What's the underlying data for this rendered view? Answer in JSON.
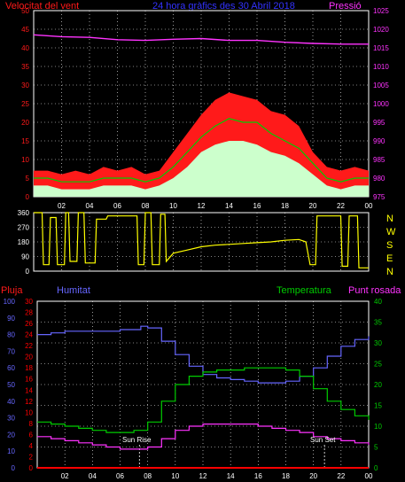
{
  "header": {
    "wind_label": "Velocitat del vent",
    "title": "24 hora gràfics des  30 Abril 2018",
    "pressure_label": "Pressió"
  },
  "lower_header": {
    "rain_label": "Pluja",
    "humidity_label": "Humitat",
    "temperature_label": "Temperatura",
    "dewpoint_label": "Punt rosada"
  },
  "annotations": {
    "sunrise": "Sun Rise",
    "sunset": "Sun Set"
  },
  "colors": {
    "wind": "#ff1a1a",
    "gust_line": "#00cc00",
    "wind_avg": "#ccffcc",
    "pressure": "#ff33ff",
    "direction": "#ffff00",
    "rain": "#ff0000",
    "humidity": "#6666ff",
    "temperature": "#00cc00",
    "dewpoint": "#ff33ff",
    "grid": "#ffffff",
    "frame": "#ffffff"
  },
  "chart_data": [
    {
      "type": "line",
      "name": "wind-pressure",
      "x_ticks": [
        "02",
        "04",
        "06",
        "08",
        "10",
        "12",
        "14",
        "16",
        "18",
        "20",
        "22",
        "00"
      ],
      "x_range_hours": [
        0,
        24
      ],
      "y_left_ticks": [
        "0",
        "5",
        "10",
        "15",
        "20",
        "25",
        "30",
        "35",
        "40",
        "45",
        "50"
      ],
      "y_left_range": [
        0,
        50
      ],
      "y_right_ticks": [
        "975",
        "980",
        "985",
        "990",
        "995",
        "1000",
        "1005",
        "1010",
        "1015",
        "1020",
        "1025"
      ],
      "y_right_range": [
        975,
        1025
      ],
      "grid": true,
      "gust_peak": [
        [
          0,
          7
        ],
        [
          1,
          7
        ],
        [
          2,
          6
        ],
        [
          3,
          7
        ],
        [
          4,
          6
        ],
        [
          5,
          8
        ],
        [
          6,
          7
        ],
        [
          7,
          8
        ],
        [
          8,
          6
        ],
        [
          9,
          7
        ],
        [
          10,
          12
        ],
        [
          11,
          17
        ],
        [
          12,
          22
        ],
        [
          13,
          26
        ],
        [
          14,
          28
        ],
        [
          15,
          27
        ],
        [
          16,
          26
        ],
        [
          17,
          23
        ],
        [
          18,
          22
        ],
        [
          19,
          19
        ],
        [
          20,
          12
        ],
        [
          21,
          8
        ],
        [
          22,
          7
        ],
        [
          23,
          8
        ],
        [
          24,
          7
        ]
      ],
      "gust_avg": [
        [
          0,
          5
        ],
        [
          1,
          5
        ],
        [
          2,
          4
        ],
        [
          3,
          4
        ],
        [
          4,
          4
        ],
        [
          5,
          5
        ],
        [
          6,
          5
        ],
        [
          7,
          5
        ],
        [
          8,
          4
        ],
        [
          9,
          5
        ],
        [
          10,
          8
        ],
        [
          11,
          12
        ],
        [
          12,
          16
        ],
        [
          13,
          19
        ],
        [
          14,
          21
        ],
        [
          15,
          20
        ],
        [
          16,
          20
        ],
        [
          17,
          17
        ],
        [
          18,
          15
        ],
        [
          19,
          13
        ],
        [
          20,
          9
        ],
        [
          21,
          5
        ],
        [
          22,
          4
        ],
        [
          23,
          5
        ],
        [
          24,
          5
        ]
      ],
      "wind_avg": [
        [
          0,
          3
        ],
        [
          1,
          3
        ],
        [
          2,
          2
        ],
        [
          3,
          2
        ],
        [
          4,
          2
        ],
        [
          5,
          3
        ],
        [
          6,
          3
        ],
        [
          7,
          3
        ],
        [
          8,
          2
        ],
        [
          9,
          3
        ],
        [
          10,
          5
        ],
        [
          11,
          8
        ],
        [
          12,
          12
        ],
        [
          13,
          14
        ],
        [
          14,
          15
        ],
        [
          15,
          15
        ],
        [
          16,
          14
        ],
        [
          17,
          12
        ],
        [
          18,
          11
        ],
        [
          19,
          9
        ],
        [
          20,
          6
        ],
        [
          21,
          3
        ],
        [
          22,
          2
        ],
        [
          23,
          3
        ],
        [
          24,
          3
        ]
      ],
      "pressure": [
        [
          0,
          1018.5
        ],
        [
          2,
          1018
        ],
        [
          4,
          1017.8
        ],
        [
          6,
          1017.2
        ],
        [
          8,
          1017
        ],
        [
          10,
          1017.3
        ],
        [
          12,
          1017.5
        ],
        [
          14,
          1017
        ],
        [
          16,
          1017
        ],
        [
          18,
          1016.5
        ],
        [
          20,
          1016.2
        ],
        [
          22,
          1016
        ],
        [
          24,
          1016
        ]
      ]
    },
    {
      "type": "line",
      "name": "wind-direction",
      "y_left_ticks": [
        "0",
        "90",
        "180",
        "270",
        "360"
      ],
      "y_range": [
        0,
        360
      ],
      "compass_labels": [
        "N",
        "W",
        "S",
        "E",
        "N"
      ],
      "grid": true,
      "direction": [
        [
          0,
          360
        ],
        [
          0.6,
          360
        ],
        [
          0.7,
          40
        ],
        [
          1.1,
          40
        ],
        [
          1.2,
          330
        ],
        [
          1.6,
          330
        ],
        [
          1.7,
          40
        ],
        [
          2.2,
          40
        ],
        [
          2.3,
          360
        ],
        [
          2.5,
          360
        ],
        [
          2.6,
          60
        ],
        [
          3.1,
          60
        ],
        [
          3.2,
          360
        ],
        [
          3.6,
          360
        ],
        [
          3.7,
          50
        ],
        [
          4.4,
          50
        ],
        [
          4.5,
          320
        ],
        [
          5.2,
          320
        ],
        [
          5.3,
          340
        ],
        [
          7.4,
          340
        ],
        [
          7.5,
          40
        ],
        [
          7.9,
          40
        ],
        [
          8,
          360
        ],
        [
          8.4,
          360
        ],
        [
          8.5,
          40
        ],
        [
          9,
          40
        ],
        [
          9.1,
          350
        ],
        [
          9.4,
          350
        ],
        [
          9.5,
          60
        ],
        [
          10,
          110
        ],
        [
          11,
          130
        ],
        [
          12,
          150
        ],
        [
          13,
          160
        ],
        [
          14,
          165
        ],
        [
          15,
          170
        ],
        [
          16,
          175
        ],
        [
          17,
          180
        ],
        [
          18,
          190
        ],
        [
          19,
          195
        ],
        [
          19.5,
          180
        ],
        [
          19.8,
          40
        ],
        [
          20.2,
          40
        ],
        [
          20.3,
          340
        ],
        [
          22,
          340
        ],
        [
          22.1,
          30
        ],
        [
          22.5,
          30
        ],
        [
          22.6,
          340
        ],
        [
          23.2,
          340
        ],
        [
          23.3,
          20
        ],
        [
          24,
          20
        ]
      ]
    },
    {
      "type": "line",
      "name": "rain-humidity-temperature",
      "x_ticks": [
        "02",
        "04",
        "06",
        "08",
        "10",
        "12",
        "14",
        "16",
        "18",
        "20",
        "22",
        "00"
      ],
      "y_humidity_ticks": [
        "0",
        "10",
        "20",
        "30",
        "40",
        "50",
        "60",
        "70",
        "80",
        "90",
        "100"
      ],
      "y_humidity_range": [
        0,
        100
      ],
      "y_rain_ticks": [
        "0",
        "2",
        "4",
        "6",
        "8",
        "10",
        "12",
        "14",
        "16",
        "18",
        "20",
        "22",
        "24",
        "26",
        "28",
        "30"
      ],
      "y_rain_range": [
        0,
        30
      ],
      "y_temp_ticks": [
        "0",
        "5",
        "10",
        "15",
        "20",
        "25",
        "30",
        "35",
        "40"
      ],
      "y_temp_range": [
        0,
        40
      ],
      "grid": true,
      "humidity": [
        [
          0,
          80
        ],
        [
          1,
          81
        ],
        [
          2,
          82
        ],
        [
          3,
          82
        ],
        [
          4,
          82
        ],
        [
          5,
          82
        ],
        [
          6,
          83
        ],
        [
          7,
          83
        ],
        [
          7.5,
          85
        ],
        [
          8,
          84
        ],
        [
          9,
          76
        ],
        [
          10,
          68
        ],
        [
          11,
          61
        ],
        [
          12,
          56
        ],
        [
          13,
          54
        ],
        [
          14,
          53
        ],
        [
          15,
          52
        ],
        [
          16,
          51
        ],
        [
          17,
          51
        ],
        [
          18,
          52
        ],
        [
          19,
          55
        ],
        [
          20,
          60
        ],
        [
          21,
          67
        ],
        [
          22,
          73
        ],
        [
          23,
          77
        ],
        [
          24,
          79
        ]
      ],
      "temperature": [
        [
          0,
          11
        ],
        [
          1,
          10.5
        ],
        [
          2,
          10
        ],
        [
          3,
          9.5
        ],
        [
          4,
          9
        ],
        [
          5,
          8.5
        ],
        [
          6,
          8.5
        ],
        [
          7,
          9
        ],
        [
          8,
          11
        ],
        [
          9,
          16
        ],
        [
          10,
          20
        ],
        [
          11,
          22
        ],
        [
          12,
          23
        ],
        [
          13,
          23.5
        ],
        [
          14,
          23.5
        ],
        [
          15,
          24
        ],
        [
          16,
          24
        ],
        [
          17,
          24
        ],
        [
          18,
          23.5
        ],
        [
          19,
          22
        ],
        [
          20,
          19
        ],
        [
          21,
          16
        ],
        [
          22,
          14
        ],
        [
          23,
          12.5
        ],
        [
          24,
          11.5
        ]
      ],
      "dewpoint": [
        [
          0,
          7.5
        ],
        [
          1,
          7
        ],
        [
          2,
          6.5
        ],
        [
          3,
          6
        ],
        [
          4,
          5.5
        ],
        [
          5,
          5
        ],
        [
          6,
          4.5
        ],
        [
          7,
          4.5
        ],
        [
          8,
          5
        ],
        [
          9,
          7
        ],
        [
          10,
          9
        ],
        [
          11,
          10
        ],
        [
          12,
          10.5
        ],
        [
          13,
          10.5
        ],
        [
          14,
          10.5
        ],
        [
          15,
          10.5
        ],
        [
          16,
          10
        ],
        [
          17,
          9.5
        ],
        [
          18,
          9
        ],
        [
          19,
          8.5
        ],
        [
          20,
          7.5
        ],
        [
          21,
          7
        ],
        [
          22,
          6.5
        ],
        [
          23,
          6
        ],
        [
          24,
          5.5
        ]
      ],
      "rain": [
        [
          0,
          0
        ],
        [
          24,
          0
        ]
      ],
      "sunrise_hour": 7.4,
      "sunset_hour": 20.8
    }
  ]
}
